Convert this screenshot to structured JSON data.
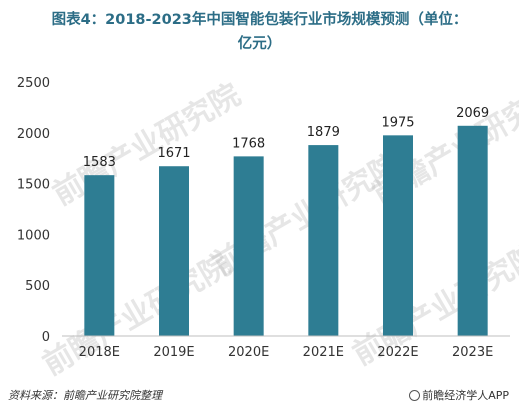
{
  "title_line1": "图表4：2018-2023年中国智能包装行业市场规模预测（单位：",
  "title_line2": "亿元）",
  "chart_data": {
    "type": "bar",
    "categories": [
      "2018E",
      "2019E",
      "2020E",
      "2021E",
      "2022E",
      "2023E"
    ],
    "values": [
      1583,
      1671,
      1768,
      1879,
      1975,
      2069
    ],
    "ylim": [
      0,
      2500
    ],
    "yticks": [
      0,
      500,
      1000,
      1500,
      2000,
      2500
    ],
    "grid": false,
    "bar_color": "#2e7d93",
    "title": "图表4：2018-2023年中国智能包装行业市场规模预测（单位：亿元）",
    "xlabel": "",
    "ylabel": ""
  },
  "footer": {
    "source": "资料来源：前瞻产业研究院整理",
    "brand": "前瞻经济学人APP"
  },
  "watermark": "前瞻产业研究院"
}
